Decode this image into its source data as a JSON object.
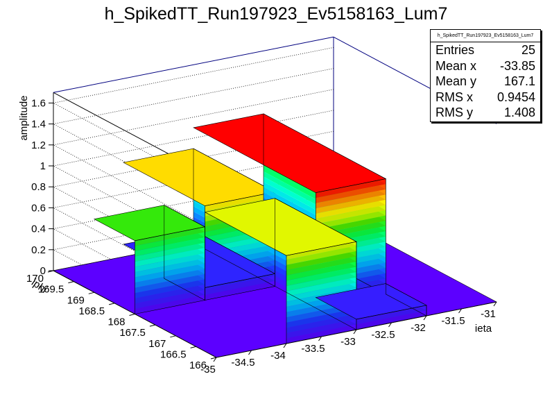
{
  "title": "h_SpikedTT_Run197923_Ev5158163_Lum7",
  "stats": {
    "name": "h_SpikedTT_Run197923_Ev5158163_Lum7",
    "rows": [
      {
        "label": "Entries",
        "value": "25"
      },
      {
        "label": "Mean x",
        "value": "-33.85"
      },
      {
        "label": "Mean y",
        "value": "167.1"
      },
      {
        "label": "RMS x",
        "value": "0.9454"
      },
      {
        "label": "RMS y",
        "value": "1.408"
      }
    ]
  },
  "chart_data": {
    "type": "lego3d",
    "title": "h_SpikedTT_Run197923_Ev5158163_Lum7",
    "xlabel": "ieta",
    "ylabel": "iphi",
    "zlabel": "amplitude",
    "xlim": [
      -35,
      -31
    ],
    "ylim": [
      166,
      170
    ],
    "zlim": [
      0,
      1.7
    ],
    "x_ticks": [
      "-35",
      "-34.5",
      "-34",
      "-33.5",
      "-33",
      "-32.5",
      "-32",
      "-31.5",
      "-31"
    ],
    "y_ticks": [
      "166",
      "166.5",
      "167",
      "167.5",
      "168",
      "168.5",
      "169",
      "169.5",
      "170"
    ],
    "z_ticks": [
      "0",
      "0.2",
      "0.4",
      "0.6",
      "0.8",
      "1",
      "1.2",
      "1.4",
      "1.6"
    ],
    "bins": [
      {
        "x": [
          -35,
          -34
        ],
        "y": [
          168,
          169
        ],
        "z": 0.7
      },
      {
        "x": [
          -34,
          -33
        ],
        "y": [
          168,
          170
        ],
        "z": 0.9
      },
      {
        "x": [
          -34,
          -33
        ],
        "y": [
          166,
          168
        ],
        "z": 0.84
      },
      {
        "x": [
          -33,
          -32
        ],
        "y": [
          167,
          170
        ],
        "z": 1.1
      },
      {
        "x": [
          -34,
          -33
        ],
        "y": [
          168,
          170
        ],
        "z": 0.12
      },
      {
        "x": [
          -33,
          -32
        ],
        "y": [
          166,
          167
        ],
        "z": 0.1
      }
    ]
  }
}
